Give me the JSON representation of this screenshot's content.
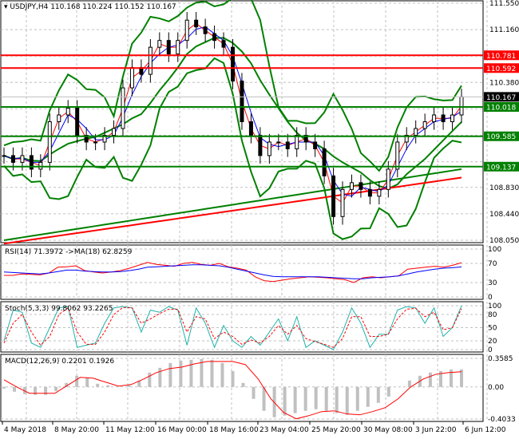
{
  "header": {
    "symbol": "USDJPY,H4",
    "ohlc": "110.168 110.224 110.152 110.167"
  },
  "colors": {
    "bull": "#00aa00",
    "bear": "#000000",
    "band": "#008000",
    "ma_red": "#ff0000",
    "ma_blue": "#0000ff",
    "level_red": "#ff0000",
    "level_green": "#008000",
    "stoch_main": "#20b2aa",
    "stoch_signal": "#ff0000",
    "macd_hist": "#c0c0c0"
  },
  "chart_data": [
    {
      "type": "candlestick",
      "title": "USDJPY,H4",
      "ylim": [
        108.05,
        111.55
      ],
      "yticks": [
        "111.550",
        "111.160",
        "110.380",
        "108.830",
        "108.440",
        "108.050"
      ],
      "current_price": "110.167",
      "levels": [
        {
          "value": "110.781",
          "color": "red"
        },
        {
          "value": "110.592",
          "color": "red"
        },
        {
          "value": "110.018",
          "color": "green"
        },
        {
          "value": "109.585",
          "color": "green"
        },
        {
          "value": "109.137",
          "color": "green"
        }
      ],
      "closes": [
        109.3,
        109.2,
        109.3,
        109.1,
        109.2,
        109.8,
        109.9,
        110.0,
        109.6,
        109.5,
        109.5,
        109.6,
        109.7,
        110.3,
        110.6,
        110.5,
        110.9,
        111.0,
        110.8,
        111.0,
        111.3,
        111.2,
        111.1,
        111.0,
        110.9,
        110.4,
        109.8,
        109.6,
        109.3,
        109.5,
        109.5,
        109.4,
        109.6,
        109.5,
        109.4,
        109.0,
        108.4,
        108.8,
        108.9,
        108.8,
        108.7,
        108.8,
        109.1,
        109.5,
        109.6,
        109.7,
        109.8,
        109.9,
        109.8,
        109.9,
        110.167
      ]
    },
    {
      "type": "line",
      "title": "RSI(14) 71.3972  ->MA(18) 62.8259",
      "ylim": [
        0,
        100
      ],
      "yticks": [
        "100",
        "70",
        "30",
        "0"
      ],
      "series": [
        {
          "values": [
            45,
            45,
            48,
            47,
            46,
            50,
            62,
            63,
            65,
            55,
            52,
            50,
            52,
            55,
            60,
            66,
            72,
            68,
            66,
            64,
            70,
            72,
            68,
            66,
            70,
            63,
            60,
            56,
            42,
            34,
            32,
            35,
            38,
            40,
            42,
            41,
            40,
            38,
            36,
            30,
            40,
            42,
            40,
            42,
            44,
            58,
            60,
            62,
            64,
            62,
            66,
            71.4
          ]
        },
        {
          "values": [
            52,
            51,
            50,
            49,
            48,
            50,
            53,
            56,
            56,
            54,
            53,
            52,
            52,
            53,
            55,
            58,
            62,
            63,
            64,
            65,
            66,
            67,
            67,
            66,
            65,
            62,
            58,
            54,
            50,
            46,
            43,
            42,
            42,
            42,
            42,
            42,
            41,
            40,
            39,
            38,
            38,
            40,
            41,
            42,
            44,
            48,
            52,
            55,
            58,
            60,
            61,
            62.8
          ]
        }
      ]
    },
    {
      "type": "line",
      "title": "Stoch(5,3,3) 99.8062 93.2265",
      "ylim": [
        0,
        100
      ],
      "yticks": [
        "100",
        "80",
        "50",
        "20",
        "0"
      ],
      "series": [
        {
          "values": [
            20,
            90,
            85,
            15,
            5,
            50,
            95,
            98,
            5,
            10,
            15,
            60,
            95,
            98,
            95,
            40,
            90,
            85,
            98,
            90,
            10,
            95,
            60,
            5,
            55,
            20,
            5,
            30,
            10,
            40,
            70,
            20,
            75,
            5,
            20,
            10,
            0,
            40,
            95,
            60,
            5,
            35,
            35,
            90,
            98,
            95,
            60,
            95,
            30,
            50,
            99.8
          ]
        },
        {
          "values": [
            15,
            60,
            80,
            40,
            10,
            30,
            80,
            95,
            40,
            12,
            12,
            40,
            80,
            96,
            95,
            60,
            70,
            82,
            92,
            92,
            40,
            75,
            70,
            25,
            40,
            30,
            12,
            22,
            15,
            30,
            55,
            35,
            55,
            25,
            18,
            12,
            5,
            25,
            75,
            75,
            30,
            30,
            35,
            70,
            92,
            94,
            75,
            85,
            45,
            50,
            93.2
          ]
        }
      ]
    },
    {
      "type": "bar+line",
      "title": "MACD(12,26,9) 0.2201 0.1926",
      "ylim": [
        -0.4033,
        0.3585
      ],
      "yticks": [
        "0.3585",
        "0.00",
        "-0.4033"
      ],
      "histogram": [
        -0.02,
        -0.06,
        -0.09,
        -0.1,
        -0.1,
        -0.05,
        0.05,
        0.14,
        0.12,
        0.04,
        0.02,
        0.0,
        0.02,
        0.08,
        0.18,
        0.24,
        0.3,
        0.33,
        0.34,
        0.35,
        0.34,
        0.3,
        0.2,
        0.05,
        -0.15,
        -0.3,
        -0.38,
        -0.36,
        -0.33,
        -0.3,
        -0.28,
        -0.3,
        -0.33,
        -0.35,
        -0.3,
        -0.25,
        -0.2,
        -0.12,
        0.0,
        0.08,
        0.14,
        0.18,
        0.2,
        0.22,
        0.22
      ],
      "signal": [
        0.09,
        0.0,
        -0.08,
        -0.08,
        -0.08,
        0.02,
        0.12,
        0.11,
        0.06,
        0.01,
        0.03,
        0.1,
        0.18,
        0.23,
        0.25,
        0.29,
        0.32,
        0.32,
        0.32,
        0.28,
        0.1,
        -0.15,
        -0.32,
        -0.4,
        -0.36,
        -0.31,
        -0.3,
        -0.34,
        -0.35,
        -0.31,
        -0.26,
        -0.15,
        0.0,
        0.1,
        0.16,
        0.18,
        0.19
      ]
    }
  ],
  "xaxis": {
    "labels": [
      "4 May 2018",
      "8 May 20:00",
      "11 May 12:00",
      "16 May 00:00",
      "18 May 16:00",
      "23 May 04:00",
      "25 May 20:00",
      "30 May 08:00",
      "3 Jun 22:00",
      "6 Jun 12:00"
    ]
  }
}
